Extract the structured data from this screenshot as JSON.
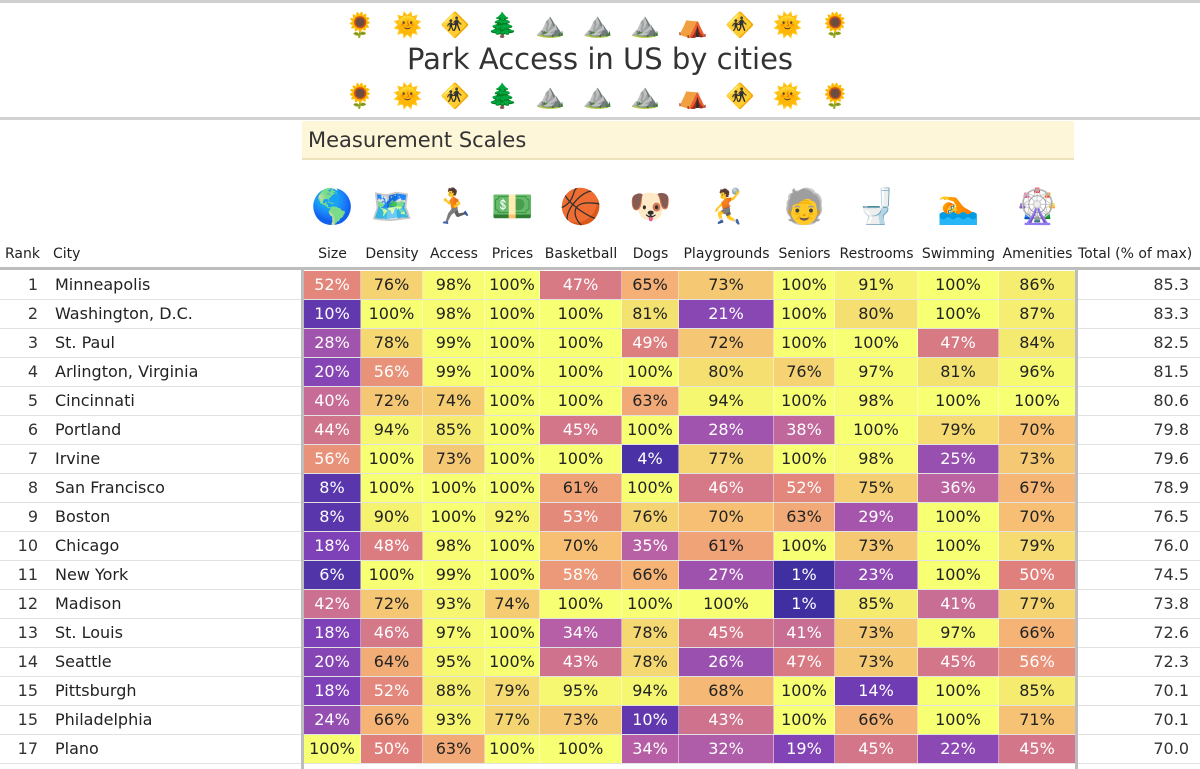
{
  "header": {
    "emoji_top": "🌻 🌞 🚸 🌲 ⛰️ ⛰️ ⛰️ ⛺ 🚸 🌞 🌻",
    "title": "Park Access in US by cities",
    "emoji_bottom": "🌻 🌞 🚸 🌲 ⛰️ ⛰️ ⛰️ ⛺ 🚸 🌞 🌻",
    "scale_label": "Measurement Scales"
  },
  "chart_data": {
    "type": "table",
    "title": "Park Access in US by cities",
    "columns": {
      "rank": "Rank",
      "city": "City",
      "total": "Total (% of max)",
      "metrics": [
        {
          "label": "Size",
          "icon": "🌎"
        },
        {
          "label": "Density",
          "icon": "🗺️"
        },
        {
          "label": "Access",
          "icon": "🏃"
        },
        {
          "label": "Prices",
          "icon": "💵"
        },
        {
          "label": "Basketball",
          "icon": "🏀"
        },
        {
          "label": "Dogs",
          "icon": "🐶"
        },
        {
          "label": "Playgrounds",
          "icon": "🤾"
        },
        {
          "label": "Seniors",
          "icon": "🧓"
        },
        {
          "label": "Restrooms",
          "icon": "🚽"
        },
        {
          "label": "Swimming",
          "icon": "🏊"
        },
        {
          "label": "Amenities",
          "icon": "🎡"
        }
      ]
    },
    "rows": [
      {
        "rank": "1",
        "city": "Minneapolis",
        "values": [
          52,
          76,
          98,
          100,
          47,
          65,
          73,
          100,
          91,
          100,
          86
        ],
        "total": "85.3"
      },
      {
        "rank": "2",
        "city": "Washington, D.C.",
        "values": [
          10,
          100,
          98,
          100,
          100,
          81,
          21,
          100,
          80,
          100,
          87
        ],
        "total": "83.3"
      },
      {
        "rank": "3",
        "city": "St. Paul",
        "values": [
          28,
          78,
          99,
          100,
          100,
          49,
          72,
          100,
          100,
          47,
          84
        ],
        "total": "82.5"
      },
      {
        "rank": "4",
        "city": "Arlington, Virginia",
        "values": [
          20,
          56,
          99,
          100,
          100,
          100,
          80,
          76,
          97,
          81,
          96
        ],
        "total": "81.5"
      },
      {
        "rank": "5",
        "city": "Cincinnati",
        "values": [
          40,
          72,
          74,
          100,
          100,
          63,
          94,
          100,
          98,
          100,
          100
        ],
        "total": "80.6"
      },
      {
        "rank": "6",
        "city": "Portland",
        "values": [
          44,
          94,
          85,
          100,
          45,
          100,
          28,
          38,
          100,
          79,
          70
        ],
        "total": "79.8"
      },
      {
        "rank": "7",
        "city": "Irvine",
        "values": [
          56,
          100,
          73,
          100,
          100,
          4,
          77,
          100,
          98,
          25,
          73
        ],
        "total": "79.6"
      },
      {
        "rank": "8",
        "city": "San Francisco",
        "values": [
          8,
          100,
          100,
          100,
          61,
          100,
          46,
          52,
          75,
          36,
          67
        ],
        "total": "78.9"
      },
      {
        "rank": "9",
        "city": "Boston",
        "values": [
          8,
          90,
          100,
          92,
          53,
          76,
          70,
          63,
          29,
          100,
          70
        ],
        "total": "76.5"
      },
      {
        "rank": "10",
        "city": "Chicago",
        "values": [
          18,
          48,
          98,
          100,
          70,
          35,
          61,
          100,
          73,
          100,
          79
        ],
        "total": "76.0"
      },
      {
        "rank": "11",
        "city": "New York",
        "values": [
          6,
          100,
          99,
          100,
          58,
          66,
          27,
          1,
          23,
          100,
          50
        ],
        "total": "74.5"
      },
      {
        "rank": "12",
        "city": "Madison",
        "values": [
          42,
          72,
          93,
          74,
          100,
          100,
          100,
          1,
          85,
          41,
          77
        ],
        "total": "73.8"
      },
      {
        "rank": "13",
        "city": "St. Louis",
        "values": [
          18,
          46,
          97,
          100,
          34,
          78,
          45,
          41,
          73,
          97,
          66
        ],
        "total": "72.6"
      },
      {
        "rank": "14",
        "city": "Seattle",
        "values": [
          20,
          64,
          95,
          100,
          43,
          78,
          26,
          47,
          73,
          45,
          56
        ],
        "total": "72.3"
      },
      {
        "rank": "15",
        "city": "Pittsburgh",
        "values": [
          18,
          52,
          88,
          79,
          95,
          94,
          68,
          100,
          14,
          100,
          85
        ],
        "total": "70.1"
      },
      {
        "rank": "15",
        "city": "Philadelphia",
        "values": [
          24,
          66,
          93,
          77,
          73,
          10,
          43,
          100,
          66,
          100,
          71
        ],
        "total": "70.1"
      },
      {
        "rank": "17",
        "city": "Plano",
        "values": [
          100,
          50,
          63,
          100,
          100,
          34,
          32,
          19,
          45,
          22,
          45
        ],
        "total": "70.0"
      }
    ],
    "value_suffix": "%",
    "color_scale": [
      "#3b2ea0",
      "#7a3fb8",
      "#b45ea8",
      "#e0807c",
      "#f6b575",
      "#f4e96f",
      "#f7ff72"
    ]
  }
}
